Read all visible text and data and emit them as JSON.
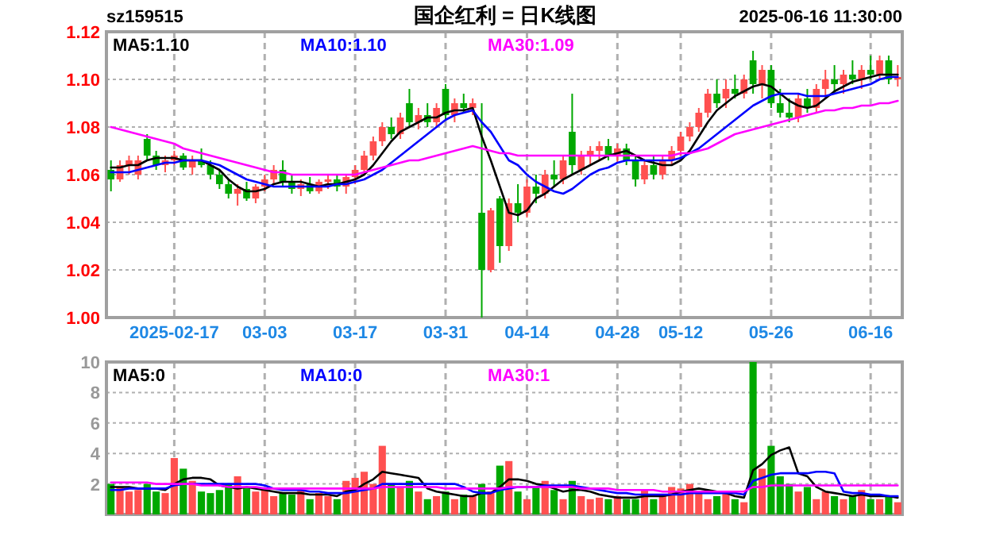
{
  "chart_data": [
    {
      "type": "candlestick",
      "title": "国企红利 = 日K线图",
      "annotations": [
        "sz159515",
        "2025-06-16 11:30:00"
      ],
      "categories": [
        null,
        null,
        null,
        null,
        null,
        null,
        null,
        "2025-02-17",
        null,
        null,
        null,
        null,
        null,
        null,
        null,
        null,
        null,
        "03-03",
        null,
        null,
        null,
        null,
        null,
        null,
        null,
        null,
        null,
        "03-17",
        null,
        null,
        null,
        null,
        null,
        null,
        null,
        null,
        null,
        "03-31",
        null,
        null,
        null,
        null,
        null,
        null,
        null,
        null,
        "04-14",
        null,
        null,
        null,
        null,
        null,
        null,
        null,
        null,
        null,
        "04-28",
        null,
        null,
        null,
        null,
        null,
        null,
        "05-12",
        null,
        null,
        null,
        null,
        null,
        null,
        null,
        null,
        null,
        "05-26",
        null,
        null,
        null,
        null,
        null,
        null,
        null,
        null,
        null,
        null,
        "06-16",
        null,
        null,
        null
      ],
      "ohlc": [
        [
          1.062,
          1.066,
          1.053,
          1.058
        ],
        [
          1.058,
          1.066,
          1.057,
          1.064
        ],
        [
          1.064,
          1.068,
          1.06,
          1.066
        ],
        [
          1.06,
          1.068,
          1.058,
          1.066
        ],
        [
          1.075,
          1.077,
          1.066,
          1.068
        ],
        [
          1.068,
          1.07,
          1.062,
          1.064
        ],
        [
          1.064,
          1.068,
          1.061,
          1.066
        ],
        [
          1.066,
          1.07,
          1.064,
          1.068
        ],
        [
          1.068,
          1.069,
          1.062,
          1.063
        ],
        [
          1.063,
          1.068,
          1.06,
          1.066
        ],
        [
          1.066,
          1.071,
          1.063,
          1.064
        ],
        [
          1.064,
          1.066,
          1.058,
          1.06
        ],
        [
          1.06,
          1.062,
          1.054,
          1.056
        ],
        [
          1.056,
          1.058,
          1.05,
          1.052
        ],
        [
          1.052,
          1.056,
          1.047,
          1.054
        ],
        [
          1.054,
          1.057,
          1.049,
          1.05
        ],
        [
          1.05,
          1.056,
          1.048,
          1.055
        ],
        [
          1.055,
          1.06,
          1.053,
          1.058
        ],
        [
          1.058,
          1.064,
          1.056,
          1.062
        ],
        [
          1.062,
          1.066,
          1.055,
          1.057
        ],
        [
          1.057,
          1.06,
          1.052,
          1.054
        ],
        [
          1.054,
          1.058,
          1.051,
          1.056
        ],
        [
          1.056,
          1.059,
          1.052,
          1.053
        ],
        [
          1.053,
          1.058,
          1.052,
          1.057
        ],
        [
          1.057,
          1.06,
          1.054,
          1.058
        ],
        [
          1.058,
          1.06,
          1.053,
          1.055
        ],
        [
          1.055,
          1.06,
          1.052,
          1.059
        ],
        [
          1.059,
          1.064,
          1.056,
          1.062
        ],
        [
          1.062,
          1.07,
          1.06,
          1.068
        ],
        [
          1.068,
          1.076,
          1.066,
          1.074
        ],
        [
          1.074,
          1.082,
          1.072,
          1.08
        ],
        [
          1.08,
          1.084,
          1.075,
          1.077
        ],
        [
          1.077,
          1.086,
          1.075,
          1.084
        ],
        [
          1.09,
          1.096,
          1.08,
          1.082
        ],
        [
          1.082,
          1.088,
          1.079,
          1.085
        ],
        [
          1.085,
          1.09,
          1.08,
          1.082
        ],
        [
          1.082,
          1.09,
          1.08,
          1.088
        ],
        [
          1.096,
          1.098,
          1.083,
          1.085
        ],
        [
          1.085,
          1.092,
          1.082,
          1.09
        ],
        [
          1.09,
          1.094,
          1.086,
          1.088
        ],
        [
          1.088,
          1.092,
          1.085,
          1.09
        ],
        [
          1.044,
          1.09,
          1.0,
          1.02
        ],
        [
          1.02,
          1.046,
          1.019,
          1.045
        ],
        [
          1.05,
          1.051,
          1.023,
          1.03
        ],
        [
          1.03,
          1.05,
          1.028,
          1.048
        ],
        [
          1.048,
          1.056,
          1.04,
          1.044
        ],
        [
          1.044,
          1.058,
          1.042,
          1.055
        ],
        [
          1.055,
          1.06,
          1.048,
          1.052
        ],
        [
          1.052,
          1.062,
          1.05,
          1.06
        ],
        [
          1.06,
          1.066,
          1.055,
          1.058
        ],
        [
          1.058,
          1.068,
          1.056,
          1.066
        ],
        [
          1.078,
          1.094,
          1.06,
          1.064
        ],
        [
          1.062,
          1.07,
          1.06,
          1.068
        ],
        [
          1.068,
          1.072,
          1.064,
          1.07
        ],
        [
          1.07,
          1.074,
          1.066,
          1.072
        ],
        [
          1.072,
          1.075,
          1.066,
          1.068
        ],
        [
          1.068,
          1.073,
          1.065,
          1.071
        ],
        [
          1.071,
          1.073,
          1.064,
          1.066
        ],
        [
          1.066,
          1.068,
          1.055,
          1.058
        ],
        [
          1.058,
          1.066,
          1.056,
          1.064
        ],
        [
          1.064,
          1.068,
          1.058,
          1.06
        ],
        [
          1.06,
          1.068,
          1.058,
          1.066
        ],
        [
          1.066,
          1.072,
          1.064,
          1.07
        ],
        [
          1.07,
          1.078,
          1.068,
          1.076
        ],
        [
          1.076,
          1.082,
          1.074,
          1.08
        ],
        [
          1.08,
          1.088,
          1.078,
          1.086
        ],
        [
          1.086,
          1.096,
          1.084,
          1.094
        ],
        [
          1.094,
          1.1,
          1.088,
          1.09
        ],
        [
          1.092,
          1.1,
          1.088,
          1.096
        ],
        [
          1.096,
          1.102,
          1.092,
          1.094
        ],
        [
          1.094,
          1.102,
          1.092,
          1.1
        ],
        [
          1.108,
          1.112,
          1.094,
          1.098
        ],
        [
          1.098,
          1.106,
          1.092,
          1.104
        ],
        [
          1.104,
          1.106,
          1.088,
          1.09
        ],
        [
          1.09,
          1.096,
          1.084,
          1.086
        ],
        [
          1.086,
          1.092,
          1.082,
          1.084
        ],
        [
          1.084,
          1.094,
          1.082,
          1.092
        ],
        [
          1.092,
          1.096,
          1.086,
          1.088
        ],
        [
          1.088,
          1.098,
          1.086,
          1.096
        ],
        [
          1.096,
          1.104,
          1.092,
          1.1
        ],
        [
          1.1,
          1.106,
          1.094,
          1.098
        ],
        [
          1.098,
          1.104,
          1.094,
          1.102
        ],
        [
          1.102,
          1.108,
          1.098,
          1.1
        ],
        [
          1.1,
          1.106,
          1.096,
          1.104
        ],
        [
          1.104,
          1.11,
          1.1,
          1.102
        ],
        [
          1.102,
          1.11,
          1.1,
          1.108
        ],
        [
          1.108,
          1.11,
          1.098,
          1.1
        ],
        [
          1.1,
          1.106,
          1.097,
          1.101
        ]
      ],
      "colors": [
        "#00a800",
        "#ff5050",
        "#ff5050",
        "#ff5050",
        "#00a800",
        "#00a800",
        "#ff5050",
        "#ff5050",
        "#00a800",
        "#ff5050",
        "#00a800",
        "#00a800",
        "#00a800",
        "#00a800",
        "#ff5050",
        "#00a800",
        "#ff5050",
        "#ff5050",
        "#ff5050",
        "#00a800",
        "#00a800",
        "#ff5050",
        "#00a800",
        "#ff5050",
        "#ff5050",
        "#00a800",
        "#ff5050",
        "#ff5050",
        "#ff5050",
        "#ff5050",
        "#ff5050",
        "#00a800",
        "#ff5050",
        "#00a800",
        "#ff5050",
        "#00a800",
        "#ff5050",
        "#00a800",
        "#ff5050",
        "#00a800",
        "#ff5050",
        "#00a800",
        "#ff5050",
        "#00a800",
        "#ff5050",
        "#00a800",
        "#ff5050",
        "#00a800",
        "#ff5050",
        "#00a800",
        "#ff5050",
        "#00a800",
        "#ff5050",
        "#ff5050",
        "#ff5050",
        "#00a800",
        "#ff5050",
        "#00a800",
        "#00a800",
        "#ff5050",
        "#00a800",
        "#ff5050",
        "#ff5050",
        "#ff5050",
        "#ff5050",
        "#ff5050",
        "#ff5050",
        "#00a800",
        "#ff5050",
        "#00a800",
        "#ff5050",
        "#00a800",
        "#ff5050",
        "#00a800",
        "#00a800",
        "#00a800",
        "#ff5050",
        "#00a800",
        "#ff5050",
        "#ff5050",
        "#00a800",
        "#ff5050",
        "#00a800",
        "#ff5050",
        "#00a800",
        "#ff5050",
        "#00a800",
        "#ff5050"
      ],
      "series": [
        {
          "type": "line",
          "name": "MA5:1.10",
          "color": "#000000",
          "values": [
            1.063,
            1.063,
            1.064,
            1.064,
            1.066,
            1.067,
            1.067,
            1.067,
            1.066,
            1.066,
            1.066,
            1.064,
            1.062,
            1.058,
            1.055,
            1.053,
            1.053,
            1.054,
            1.056,
            1.057,
            1.057,
            1.057,
            1.056,
            1.055,
            1.056,
            1.056,
            1.057,
            1.058,
            1.06,
            1.064,
            1.069,
            1.074,
            1.078,
            1.08,
            1.082,
            1.084,
            1.084,
            1.086,
            1.087,
            1.087,
            1.088,
            1.076,
            1.066,
            1.055,
            1.044,
            1.043,
            1.045,
            1.05,
            1.052,
            1.055,
            1.058,
            1.06,
            1.062,
            1.064,
            1.066,
            1.068,
            1.069,
            1.07,
            1.068,
            1.066,
            1.065,
            1.064,
            1.064,
            1.066,
            1.07,
            1.076,
            1.082,
            1.087,
            1.09,
            1.093,
            1.095,
            1.097,
            1.098,
            1.097,
            1.094,
            1.091,
            1.089,
            1.088,
            1.089,
            1.092,
            1.095,
            1.097,
            1.099,
            1.1,
            1.101,
            1.102,
            1.102,
            1.102
          ]
        },
        {
          "type": "line",
          "name": "MA10:1.10",
          "color": "#0000ff",
          "values": [
            1.061,
            1.061,
            1.061,
            1.062,
            1.063,
            1.064,
            1.065,
            1.065,
            1.066,
            1.066,
            1.066,
            1.065,
            1.064,
            1.062,
            1.06,
            1.058,
            1.057,
            1.056,
            1.055,
            1.055,
            1.055,
            1.055,
            1.055,
            1.055,
            1.055,
            1.056,
            1.056,
            1.057,
            1.058,
            1.06,
            1.062,
            1.065,
            1.068,
            1.071,
            1.074,
            1.077,
            1.08,
            1.083,
            1.085,
            1.086,
            1.087,
            1.082,
            1.078,
            1.072,
            1.066,
            1.064,
            1.06,
            1.057,
            1.055,
            1.053,
            1.052,
            1.054,
            1.057,
            1.06,
            1.062,
            1.063,
            1.065,
            1.066,
            1.066,
            1.066,
            1.066,
            1.066,
            1.066,
            1.067,
            1.069,
            1.071,
            1.074,
            1.077,
            1.08,
            1.083,
            1.086,
            1.089,
            1.091,
            1.093,
            1.094,
            1.094,
            1.094,
            1.093,
            1.093,
            1.093,
            1.094,
            1.095,
            1.096,
            1.097,
            1.098,
            1.1,
            1.101,
            1.101
          ]
        },
        {
          "type": "line",
          "name": "MA30:1.09",
          "color": "#ff00ff",
          "values": [
            1.08,
            1.079,
            1.078,
            1.077,
            1.076,
            1.075,
            1.074,
            1.073,
            1.071,
            1.07,
            1.069,
            1.068,
            1.067,
            1.066,
            1.065,
            1.064,
            1.063,
            1.062,
            1.061,
            1.061,
            1.06,
            1.06,
            1.06,
            1.06,
            1.06,
            1.06,
            1.06,
            1.06,
            1.061,
            1.062,
            1.063,
            1.064,
            1.065,
            1.066,
            1.066,
            1.067,
            1.068,
            1.069,
            1.07,
            1.071,
            1.072,
            1.071,
            1.07,
            1.069,
            1.069,
            1.068,
            1.068,
            1.068,
            1.068,
            1.068,
            1.068,
            1.068,
            1.068,
            1.068,
            1.068,
            1.068,
            1.068,
            1.068,
            1.068,
            1.068,
            1.068,
            1.068,
            1.068,
            1.069,
            1.069,
            1.07,
            1.071,
            1.073,
            1.075,
            1.077,
            1.078,
            1.079,
            1.08,
            1.081,
            1.082,
            1.083,
            1.084,
            1.085,
            1.086,
            1.087,
            1.087,
            1.088,
            1.088,
            1.089,
            1.089,
            1.09,
            1.09,
            1.091
          ]
        }
      ],
      "ylim": [
        1.0,
        1.12
      ],
      "yticks": [
        {
          "value": 1.0,
          "label": "1.00"
        },
        {
          "value": 1.02,
          "label": "1.02"
        },
        {
          "value": 1.04,
          "label": "1.04"
        },
        {
          "value": 1.06,
          "label": "1.06"
        },
        {
          "value": 1.08,
          "label": "1.08"
        },
        {
          "value": 1.1,
          "label": "1.10"
        },
        {
          "value": 1.12,
          "label": "1.12"
        }
      ],
      "grid": true,
      "legend": "top"
    },
    {
      "type": "bar",
      "categories": [
        null,
        null,
        null,
        null,
        null,
        null,
        null,
        null,
        null,
        null,
        null,
        null,
        null,
        null,
        null,
        null,
        null,
        null,
        null,
        null,
        null,
        null,
        null,
        null,
        null,
        null,
        null,
        null,
        null,
        null,
        null,
        null,
        null,
        null,
        null,
        null,
        null,
        null,
        null,
        null,
        null,
        null,
        null,
        null,
        null,
        null,
        null,
        null,
        null,
        null,
        null,
        null,
        null,
        null,
        null,
        null,
        null,
        null,
        null,
        null,
        null,
        null,
        null,
        null,
        null,
        null,
        null,
        null,
        null,
        null,
        null,
        null,
        null,
        null,
        null,
        null,
        null,
        null,
        null,
        null,
        null,
        null,
        null,
        null,
        null,
        null,
        null,
        null
      ],
      "series": [
        {
          "colors": [
            "#00a800",
            "#ff5050",
            "#ff5050",
            "#ff5050",
            "#00a800",
            "#00a800",
            "#ff5050",
            "#ff5050",
            "#00a800",
            "#ff5050",
            "#00a800",
            "#00a800",
            "#00a800",
            "#00a800",
            "#ff5050",
            "#00a800",
            "#ff5050",
            "#ff5050",
            "#ff5050",
            "#00a800",
            "#00a800",
            "#ff5050",
            "#00a800",
            "#ff5050",
            "#ff5050",
            "#00a800",
            "#ff5050",
            "#ff5050",
            "#ff5050",
            "#ff5050",
            "#ff5050",
            "#00a800",
            "#ff5050",
            "#00a800",
            "#ff5050",
            "#00a800",
            "#ff5050",
            "#00a800",
            "#ff5050",
            "#00a800",
            "#ff5050",
            "#00a800",
            "#ff5050",
            "#00a800",
            "#ff5050",
            "#00a800",
            "#ff5050",
            "#00a800",
            "#ff5050",
            "#00a800",
            "#ff5050",
            "#00a800",
            "#ff5050",
            "#ff5050",
            "#ff5050",
            "#00a800",
            "#ff5050",
            "#00a800",
            "#00a800",
            "#ff5050",
            "#00a800",
            "#ff5050",
            "#ff5050",
            "#ff5050",
            "#ff5050",
            "#ff5050",
            "#ff5050",
            "#00a800",
            "#ff5050",
            "#00a800",
            "#ff5050",
            "#00a800",
            "#ff5050",
            "#00a800",
            "#00a800",
            "#00a800",
            "#ff5050",
            "#00a800",
            "#ff5050",
            "#ff5050",
            "#00a800",
            "#ff5050",
            "#00a800",
            "#ff5050",
            "#00a800",
            "#ff5050",
            "#00a800",
            "#ff5050"
          ],
          "values": [
            2.0,
            1.8,
            1.5,
            1.6,
            2.0,
            1.5,
            1.4,
            3.7,
            3.0,
            2.2,
            1.5,
            1.4,
            1.6,
            2.0,
            2.5,
            1.8,
            1.5,
            1.6,
            1.2,
            1.4,
            1.3,
            1.6,
            1.0,
            1.4,
            1.2,
            1.0,
            2.2,
            2.4,
            2.8,
            2.0,
            4.5,
            2.0,
            1.8,
            2.2,
            1.5,
            1.0,
            1.2,
            1.5,
            1.0,
            1.3,
            1.2,
            2.0,
            1.5,
            3.2,
            3.5,
            1.5,
            1.0,
            1.8,
            2.2,
            1.6,
            1.0,
            2.2,
            1.2,
            1.0,
            1.1,
            1.0,
            1.2,
            1.0,
            1.0,
            1.6,
            1.0,
            1.3,
            1.8,
            1.7,
            2.0,
            1.5,
            1.0,
            1.2,
            1.5,
            1.0,
            0.8,
            10.0,
            3.0,
            4.5,
            2.5,
            2.0,
            1.5,
            1.8,
            1.0,
            1.5,
            1.2,
            1.0,
            1.2,
            1.6,
            1.0,
            1.0,
            1.2,
            0.8
          ]
        },
        {
          "type": "line",
          "name": "MA5:0",
          "color": "#000000",
          "values": [
            1.8,
            1.8,
            1.8,
            1.7,
            1.7,
            1.7,
            1.6,
            2.0,
            2.3,
            2.4,
            2.4,
            2.3,
            1.9,
            1.8,
            1.7,
            1.8,
            1.7,
            1.6,
            1.5,
            1.4,
            1.4,
            1.4,
            1.3,
            1.3,
            1.3,
            1.2,
            1.5,
            1.6,
            2.0,
            2.3,
            2.8,
            2.7,
            2.6,
            2.5,
            2.4,
            1.7,
            1.5,
            1.4,
            1.3,
            1.2,
            1.2,
            1.4,
            1.4,
            1.8,
            2.3,
            2.3,
            2.2,
            2.0,
            1.9,
            1.7,
            1.5,
            1.6,
            1.6,
            1.5,
            1.3,
            1.2,
            1.1,
            1.1,
            1.1,
            1.2,
            1.2,
            1.2,
            1.3,
            1.5,
            1.6,
            1.7,
            1.6,
            1.5,
            1.4,
            1.2,
            1.1,
            2.9,
            3.3,
            3.9,
            4.2,
            4.4,
            2.7,
            2.5,
            1.8,
            1.5,
            1.4,
            1.3,
            1.2,
            1.3,
            1.2,
            1.2,
            1.2,
            1.1
          ]
        },
        {
          "type": "line",
          "name": "MA10:0",
          "color": "#0000ff",
          "values": [
            1.6,
            1.6,
            1.7,
            1.7,
            1.7,
            1.7,
            1.7,
            1.9,
            2.0,
            2.0,
            2.0,
            2.0,
            2.0,
            2.0,
            2.0,
            2.0,
            2.0,
            1.9,
            1.7,
            1.6,
            1.6,
            1.6,
            1.5,
            1.5,
            1.4,
            1.4,
            1.4,
            1.5,
            1.6,
            1.7,
            2.0,
            2.0,
            2.0,
            2.0,
            2.0,
            2.0,
            2.0,
            2.0,
            2.0,
            1.8,
            1.5,
            1.4,
            1.4,
            1.6,
            1.7,
            1.8,
            1.8,
            1.8,
            1.9,
            1.9,
            1.9,
            1.9,
            1.8,
            1.7,
            1.6,
            1.5,
            1.4,
            1.4,
            1.3,
            1.3,
            1.3,
            1.3,
            1.3,
            1.3,
            1.4,
            1.4,
            1.4,
            1.4,
            1.4,
            1.4,
            1.3,
            2.2,
            2.4,
            2.6,
            2.7,
            2.7,
            2.7,
            2.7,
            2.8,
            2.8,
            2.7,
            1.5,
            1.4,
            1.4,
            1.3,
            1.3,
            1.2,
            1.2
          ]
        },
        {
          "type": "line",
          "name": "MA30:1",
          "color": "#ff00ff",
          "values": [
            2.1,
            2.1,
            2.1,
            2.1,
            2.1,
            2.0,
            2.0,
            2.0,
            2.0,
            2.0,
            1.9,
            1.9,
            1.9,
            1.8,
            1.8,
            1.8,
            1.8,
            1.7,
            1.7,
            1.7,
            1.7,
            1.7,
            1.7,
            1.7,
            1.7,
            1.7,
            1.7,
            1.7,
            1.7,
            1.7,
            1.8,
            1.8,
            1.8,
            1.8,
            1.8,
            1.8,
            1.8,
            1.7,
            1.7,
            1.7,
            1.7,
            1.7,
            1.7,
            1.7,
            1.8,
            1.8,
            1.8,
            1.8,
            1.8,
            1.8,
            1.8,
            1.8,
            1.7,
            1.7,
            1.7,
            1.7,
            1.6,
            1.6,
            1.6,
            1.6,
            1.6,
            1.5,
            1.5,
            1.5,
            1.5,
            1.5,
            1.5,
            1.5,
            1.5,
            1.5,
            1.5,
            1.8,
            1.8,
            1.9,
            1.9,
            1.9,
            1.9,
            1.9,
            1.9,
            1.9,
            1.9,
            1.9,
            1.9,
            1.9,
            1.9,
            1.9,
            1.9,
            1.9
          ]
        }
      ],
      "ylim": [
        0,
        10
      ],
      "yticks": [
        2,
        4,
        6,
        8,
        10
      ],
      "grid": true,
      "legend": "top",
      "tick_labels": "y"
    }
  ]
}
